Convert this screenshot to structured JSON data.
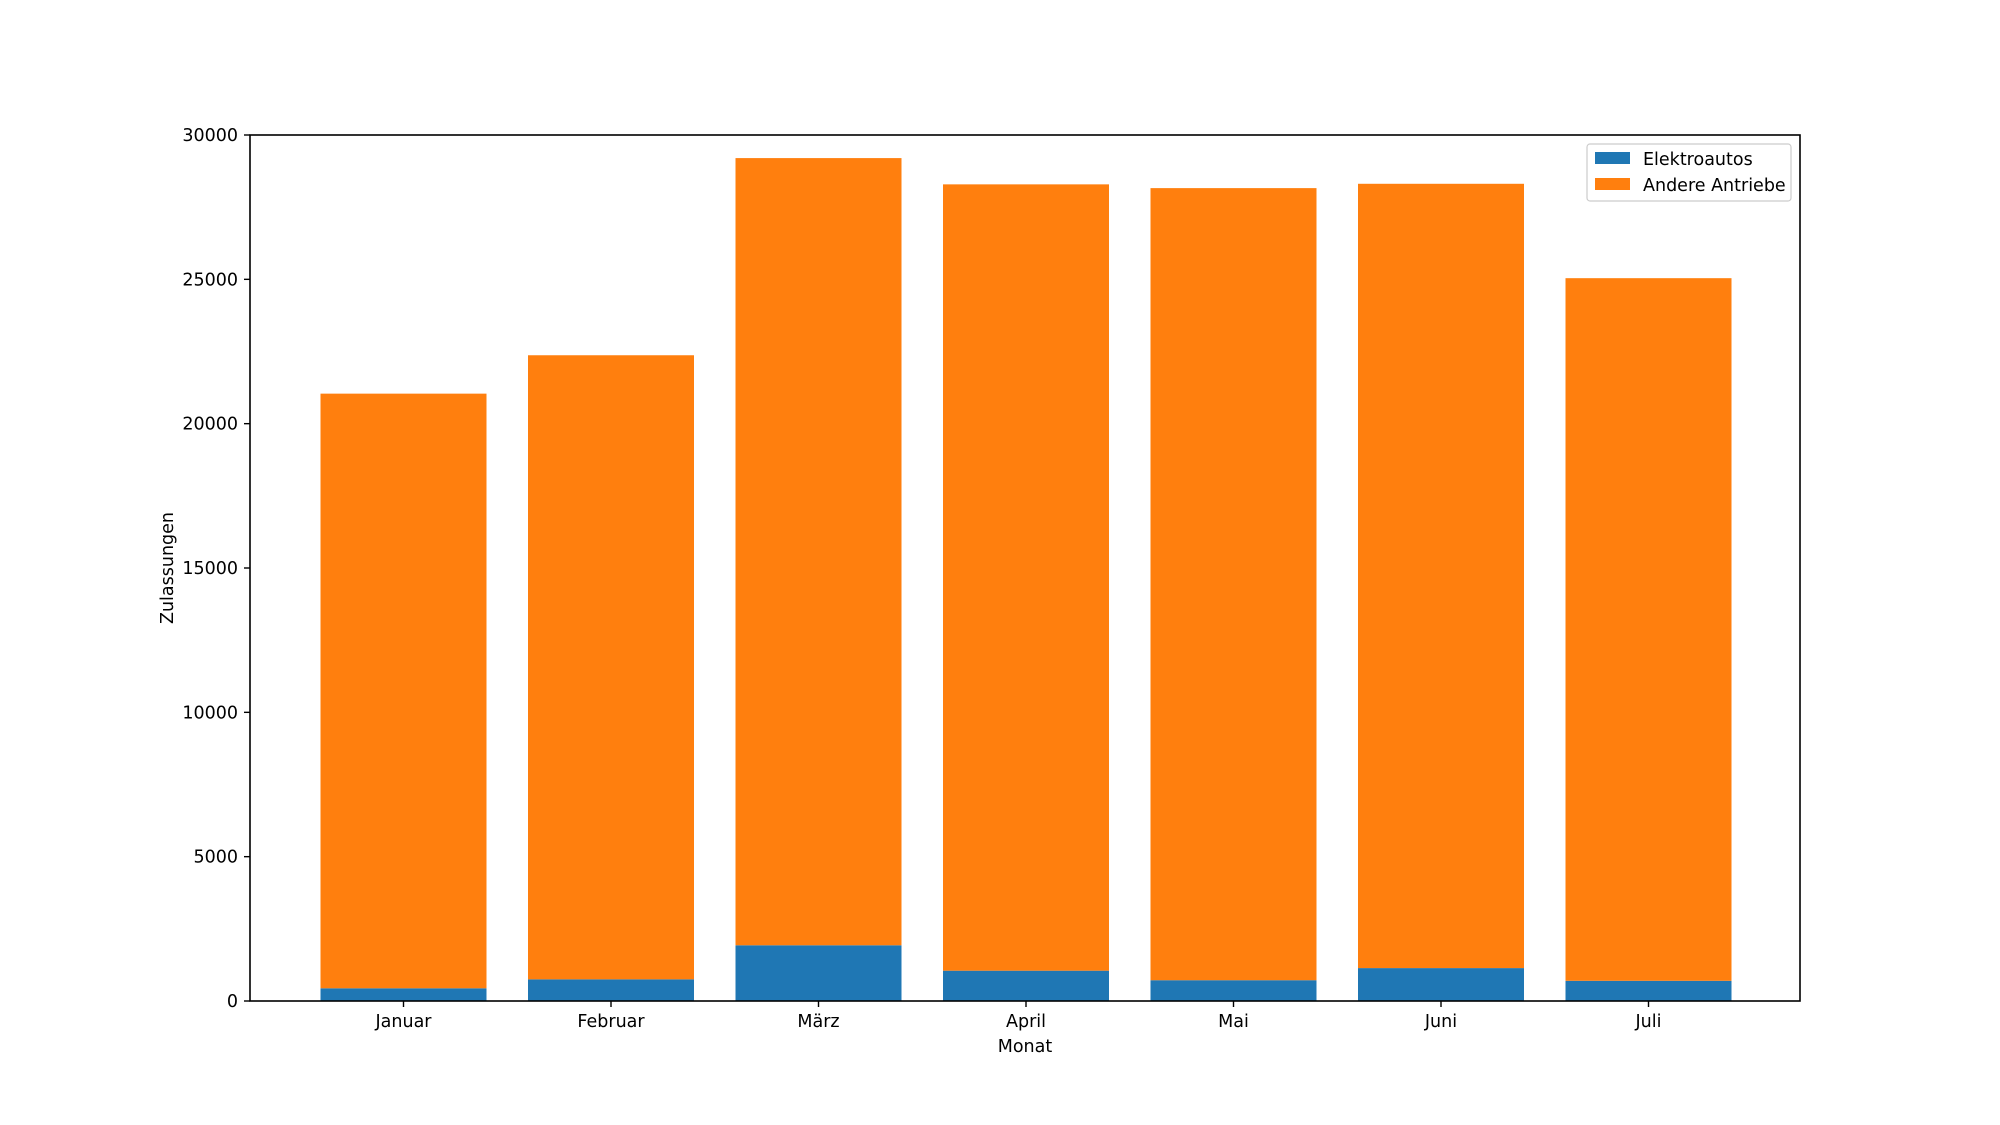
{
  "chart_data": {
    "type": "bar",
    "stacked": true,
    "title": "",
    "xlabel": "Monat",
    "ylabel": "Zulassungen",
    "categories": [
      "Januar",
      "Februar",
      "März",
      "April",
      "Mai",
      "Juni",
      "Juli"
    ],
    "series": [
      {
        "name": "Elektroautos",
        "color": "#1f77b4",
        "values": [
          440,
          750,
          1930,
          1050,
          720,
          1140,
          700
        ]
      },
      {
        "name": "Andere Antriebe",
        "color": "#ff7f0e",
        "values": [
          20600,
          21620,
          27270,
          27240,
          27440,
          27170,
          24340
        ]
      }
    ],
    "ylim": [
      0,
      30000
    ],
    "yticks": [
      0,
      5000,
      10000,
      15000,
      20000,
      25000,
      30000
    ],
    "grid": false,
    "legend_position": "top-right"
  }
}
